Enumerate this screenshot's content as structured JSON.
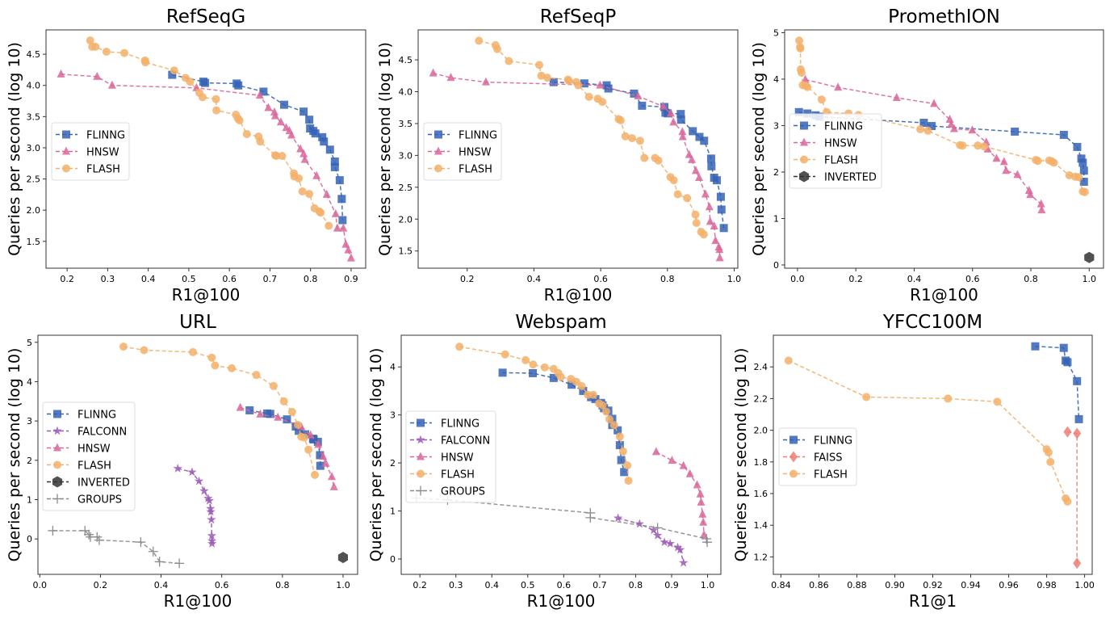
{
  "colors": {
    "FLINNG": "#3563b5",
    "HNSW": "#d9669a",
    "FLASH": "#f3b06a",
    "FALCONN": "#9b59b6",
    "INVERTED": "#333333",
    "GROUPS": "#8c8c8c",
    "FAISS": "#ee7d74"
  },
  "markers": {
    "FLINNG": "square",
    "HNSW": "triangle",
    "FLASH": "circle",
    "FALCONN": "star",
    "INVERTED": "hexagon",
    "GROUPS": "plus",
    "FAISS": "diamond"
  },
  "chart_data": [
    {
      "type": "line",
      "title": "RefSeqG",
      "xlabel": "R1@100",
      "ylabel": "Queries per second (log 10)",
      "xlim": [
        0.148,
        0.936
      ],
      "ylim": [
        1.07,
        4.89
      ],
      "xticks": [
        "0.2",
        "0.3",
        "0.4",
        "0.5",
        "0.6",
        "0.7",
        "0.8",
        "0.9"
      ],
      "yticks": [
        "1.5",
        "2.0",
        "2.5",
        "3.0",
        "3.5",
        "4.0",
        "4.5"
      ],
      "grid": false,
      "legend": "center-left",
      "series": [
        {
          "name": "FLINNG",
          "x": [
            0.459,
            0.536,
            0.54,
            0.618,
            0.622,
            0.684,
            0.735,
            0.783,
            0.797,
            0.799,
            0.807,
            0.812,
            0.829,
            0.833,
            0.848,
            0.86,
            0.86,
            0.872,
            0.877,
            0.879
          ],
          "y": [
            4.17,
            4.06,
            4.04,
            4.03,
            4.0,
            3.9,
            3.69,
            3.58,
            3.45,
            3.31,
            3.27,
            3.23,
            3.17,
            3.1,
            2.97,
            2.78,
            2.69,
            2.48,
            2.18,
            1.84
          ]
        },
        {
          "name": "HNSW",
          "x": [
            0.185,
            0.274,
            0.311,
            0.519,
            0.675,
            0.696,
            0.711,
            0.713,
            0.727,
            0.74,
            0.748,
            0.753,
            0.775,
            0.783,
            0.786,
            0.815,
            0.84,
            0.862,
            0.866,
            0.881,
            0.887,
            0.893,
            0.9
          ],
          "y": [
            4.18,
            4.14,
            4.0,
            3.96,
            3.84,
            3.64,
            3.57,
            3.51,
            3.41,
            3.32,
            3.27,
            3.2,
            2.98,
            2.9,
            2.81,
            2.55,
            2.25,
            1.94,
            1.71,
            1.71,
            1.45,
            1.36,
            1.23
          ]
        },
        {
          "name": "FLASH",
          "x": [
            0.257,
            0.262,
            0.27,
            0.297,
            0.341,
            0.392,
            0.393,
            0.464,
            0.492,
            0.503,
            0.526,
            0.534,
            0.567,
            0.568,
            0.616,
            0.621,
            0.625,
            0.643,
            0.672,
            0.676,
            0.713,
            0.716,
            0.73,
            0.759,
            0.76,
            0.771,
            0.78,
            0.797,
            0.81,
            0.822,
            0.825,
            0.845
          ],
          "y": [
            4.72,
            4.62,
            4.62,
            4.54,
            4.52,
            4.4,
            4.37,
            4.24,
            4.12,
            4.06,
            3.88,
            3.81,
            3.78,
            3.6,
            3.53,
            3.47,
            3.44,
            3.22,
            3.18,
            3.1,
            2.88,
            2.87,
            2.87,
            2.59,
            2.54,
            2.51,
            2.3,
            2.26,
            2.03,
            1.98,
            1.96,
            1.75
          ]
        }
      ]
    },
    {
      "type": "line",
      "title": "RefSeqP",
      "xlabel": "R1@100",
      "ylabel": "Queries per second (log 10)",
      "xlim": [
        0.053,
        1.011
      ],
      "ylim": [
        1.23,
        4.97
      ],
      "xticks": [
        "0.2",
        "0.4",
        "0.6",
        "0.8",
        "1.0"
      ],
      "yticks": [
        "1.5",
        "2.0",
        "2.5",
        "3.0",
        "3.5",
        "4.0",
        "4.5"
      ],
      "grid": false,
      "legend": "center-left",
      "series": [
        {
          "name": "FLINNG",
          "x": [
            0.459,
            0.551,
            0.618,
            0.623,
            0.7,
            0.724,
            0.791,
            0.794,
            0.801,
            0.84,
            0.841,
            0.876,
            0.896,
            0.91,
            0.931,
            0.932,
            0.94,
            0.948,
            0.96,
            0.962,
            0.969
          ],
          "y": [
            4.15,
            4.13,
            4.1,
            4.05,
            3.97,
            3.78,
            3.76,
            3.67,
            3.66,
            3.65,
            3.56,
            3.38,
            3.29,
            3.23,
            2.95,
            2.83,
            2.65,
            2.61,
            2.35,
            2.15,
            1.86
          ]
        },
        {
          "name": "HNSW",
          "x": [
            0.098,
            0.151,
            0.256,
            0.598,
            0.712,
            0.787,
            0.81,
            0.818,
            0.845,
            0.846,
            0.865,
            0.873,
            0.885,
            0.895,
            0.914,
            0.926,
            0.928,
            0.94,
            0.944,
            0.954,
            0.956,
            0.957
          ],
          "y": [
            4.29,
            4.22,
            4.15,
            4.1,
            3.93,
            3.77,
            3.66,
            3.52,
            3.37,
            3.29,
            3.01,
            2.93,
            2.76,
            2.65,
            2.39,
            2.19,
            1.96,
            1.89,
            1.66,
            1.56,
            1.52,
            1.39
          ]
        },
        {
          "name": "FLASH",
          "x": [
            0.235,
            0.285,
            0.29,
            0.325,
            0.416,
            0.422,
            0.44,
            0.502,
            0.505,
            0.527,
            0.533,
            0.565,
            0.591,
            0.605,
            0.654,
            0.66,
            0.674,
            0.694,
            0.718,
            0.731,
            0.763,
            0.773,
            0.809,
            0.819,
            0.831,
            0.859,
            0.884,
            0.887,
            0.901,
            0.909
          ],
          "y": [
            4.8,
            4.73,
            4.67,
            4.48,
            4.42,
            4.25,
            4.22,
            4.19,
            4.17,
            4.15,
            4.1,
            3.92,
            3.89,
            3.84,
            3.57,
            3.55,
            3.3,
            3.27,
            3.23,
            2.96,
            2.96,
            2.92,
            2.66,
            2.61,
            2.39,
            2.33,
            2.07,
            1.94,
            1.8,
            1.76
          ]
        }
      ]
    },
    {
      "type": "line",
      "title": "PromethION",
      "xlabel": "R1@100",
      "ylabel": "Queries per second (log 10)",
      "xlim": [
        -0.044,
        1.049
      ],
      "ylim": [
        -0.07,
        5.06
      ],
      "xticks": [
        "0.0",
        "0.2",
        "0.4",
        "0.6",
        "0.8",
        "1.0"
      ],
      "yticks": [
        "0",
        "1",
        "2",
        "3",
        "4",
        "5"
      ],
      "grid": false,
      "legend": "center-left",
      "series": [
        {
          "name": "FLINNG",
          "x": [
            0.005,
            0.034,
            0.062,
            0.076,
            0.433,
            0.46,
            0.745,
            0.913,
            0.959,
            0.973,
            0.978,
            0.982,
            0.982
          ],
          "y": [
            3.29,
            3.26,
            3.22,
            3.19,
            3.06,
            2.99,
            2.87,
            2.8,
            2.54,
            2.29,
            2.2,
            2.03,
            1.79
          ]
        },
        {
          "name": "HNSW",
          "x": [
            0.027,
            0.139,
            0.34,
            0.468,
            0.522,
            0.527,
            0.537,
            0.599,
            0.647,
            0.652,
            0.682,
            0.708,
            0.715,
            0.754,
            0.794,
            0.798,
            0.835,
            0.837
          ],
          "y": [
            3.99,
            3.82,
            3.6,
            3.47,
            3.13,
            3.02,
            2.93,
            2.9,
            2.64,
            2.49,
            2.29,
            2.22,
            2.03,
            1.94,
            1.6,
            1.51,
            1.31,
            1.18
          ]
        },
        {
          "name": "FLASH",
          "x": [
            0.006,
            0.009,
            0.01,
            0.011,
            0.014,
            0.018,
            0.028,
            0.034,
            0.083,
            0.1,
            0.175,
            0.209,
            0.421,
            0.447,
            0.557,
            0.566,
            0.618,
            0.64,
            0.817,
            0.824,
            0.863,
            0.872,
            0.879,
            0.932,
            0.952,
            0.964,
            0.978,
            0.985
          ],
          "y": [
            4.83,
            4.69,
            4.66,
            4.21,
            4.14,
            3.87,
            3.86,
            3.83,
            3.56,
            3.29,
            3.26,
            3.23,
            2.92,
            2.89,
            2.58,
            2.57,
            2.57,
            2.55,
            2.26,
            2.24,
            2.25,
            2.23,
            2.2,
            1.93,
            1.9,
            1.89,
            1.58,
            1.57
          ]
        },
        {
          "name": "INVERTED",
          "x": [
            1.0
          ],
          "y": [
            0.16
          ]
        }
      ]
    },
    {
      "type": "line",
      "title": "URL",
      "xlabel": "R1@100",
      "ylabel": "Queries per second (log 10)",
      "xlim": [
        -0.006,
        1.048
      ],
      "ylim": [
        -0.9,
        5.18
      ],
      "xticks": [
        "0.0",
        "0.2",
        "0.4",
        "0.6",
        "0.8",
        "1.0"
      ],
      "yticks": [
        "0",
        "1",
        "2",
        "3",
        "4",
        "5"
      ],
      "grid": false,
      "legend": "center-left",
      "series": [
        {
          "name": "FLINNG",
          "x": [
            0.692,
            0.75,
            0.76,
            0.815,
            0.844,
            0.854,
            0.875,
            0.901,
            0.903,
            0.917,
            0.924,
            0.925
          ],
          "y": [
            3.27,
            3.19,
            3.18,
            3.04,
            2.86,
            2.75,
            2.66,
            2.55,
            2.53,
            2.47,
            2.13,
            1.86
          ]
        },
        {
          "name": "FALCONN",
          "x": [
            0.455,
            0.502,
            0.525,
            0.542,
            0.555,
            0.559,
            0.563,
            0.564,
            0.566,
            0.567,
            0.568,
            0.568
          ],
          "y": [
            1.79,
            1.7,
            1.47,
            1.22,
            1.03,
            0.97,
            0.77,
            0.69,
            0.49,
            0.08,
            -0.05,
            -0.12
          ]
        },
        {
          "name": "HNSW",
          "x": [
            0.661,
            0.727,
            0.785,
            0.862,
            0.893,
            0.918,
            0.934,
            0.943,
            0.963,
            0.97
          ],
          "y": [
            3.34,
            3.17,
            3.09,
            2.85,
            2.64,
            2.4,
            2.1,
            1.92,
            1.58,
            1.32
          ]
        },
        {
          "name": "FLASH",
          "x": [
            0.276,
            0.344,
            0.505,
            0.567,
            0.578,
            0.633,
            0.714,
            0.771,
            0.805,
            0.832,
            0.851,
            0.862,
            0.872,
            0.886,
            0.907
          ],
          "y": [
            4.89,
            4.8,
            4.75,
            4.61,
            4.41,
            4.34,
            4.17,
            3.89,
            3.5,
            3.23,
            2.9,
            2.6,
            2.58,
            2.27,
            1.63
          ]
        },
        {
          "name": "INVERTED",
          "x": [
            1.0
          ],
          "y": [
            -0.47
          ]
        },
        {
          "name": "GROUPS",
          "x": [
            0.043,
            0.149,
            0.162,
            0.167,
            0.189,
            0.196,
            0.333,
            0.374,
            0.395,
            0.46
          ],
          "y": [
            0.21,
            0.21,
            0.11,
            0.05,
            0.05,
            -0.03,
            -0.08,
            -0.32,
            -0.58,
            -0.62
          ]
        }
      ]
    },
    {
      "type": "line",
      "title": "Webspam",
      "xlabel": "R1@100",
      "ylabel": "Queries per second (log 10)",
      "xlim": [
        0.148,
        1.037
      ],
      "ylim": [
        -0.32,
        4.66
      ],
      "xticks": [
        "0.2",
        "0.3",
        "0.4",
        "0.5",
        "0.6",
        "0.7",
        "0.8",
        "0.9",
        "1.0"
      ],
      "yticks": [
        "0",
        "1",
        "2",
        "3",
        "4"
      ],
      "grid": false,
      "legend": "center-left",
      "series": [
        {
          "name": "FLINNG",
          "x": [
            0.43,
            0.514,
            0.572,
            0.622,
            0.654,
            0.676,
            0.688,
            0.704,
            0.708,
            0.712,
            0.724,
            0.735,
            0.735,
            0.75,
            0.756,
            0.76,
            0.768
          ],
          "y": [
            3.88,
            3.87,
            3.77,
            3.63,
            3.5,
            3.37,
            3.33,
            3.25,
            3.2,
            3.14,
            3.09,
            2.92,
            2.79,
            2.68,
            2.37,
            2.06,
            1.81
          ]
        },
        {
          "name": "FALCONN",
          "x": [
            0.751,
            0.811,
            0.85,
            0.861,
            0.88,
            0.896,
            0.917,
            0.924,
            0.933
          ],
          "y": [
            0.85,
            0.73,
            0.6,
            0.49,
            0.35,
            0.32,
            0.24,
            0.19,
            -0.08
          ]
        },
        {
          "name": "HNSW",
          "x": [
            0.857,
            0.901,
            0.933,
            0.951,
            0.971,
            0.98,
            0.982,
            0.986,
            0.988,
            0.99
          ],
          "y": [
            2.23,
            2.05,
            1.94,
            1.77,
            1.54,
            1.35,
            1.18,
            0.93,
            0.76,
            0.5
          ]
        },
        {
          "name": "FLASH",
          "x": [
            0.31,
            0.437,
            0.494,
            0.515,
            0.547,
            0.572,
            0.585,
            0.592,
            0.62,
            0.635,
            0.65,
            0.667,
            0.682,
            0.698,
            0.708,
            0.718,
            0.727,
            0.74,
            0.756,
            0.765,
            0.777,
            0.78
          ],
          "y": [
            4.42,
            4.26,
            4.14,
            4.05,
            3.99,
            3.96,
            3.87,
            3.79,
            3.75,
            3.69,
            3.6,
            3.42,
            3.42,
            3.24,
            3.2,
            3.07,
            2.91,
            2.79,
            2.55,
            2.24,
            1.95,
            1.63
          ]
        },
        {
          "name": "GROUPS",
          "x": [
            0.19,
            0.277,
            0.674,
            0.674,
            0.861,
            0.997,
            0.999
          ],
          "y": [
            1.27,
            1.23,
            0.96,
            0.86,
            0.65,
            0.42,
            0.35
          ]
        }
      ]
    },
    {
      "type": "line",
      "title": "YFCC100M",
      "xlabel": "R1@1",
      "ylabel": "Queries per second (log 10)",
      "xlim": [
        0.836,
        1.004
      ],
      "ylim": [
        1.09,
        2.6
      ],
      "xticks": [
        "0.84",
        "0.86",
        "0.88",
        "0.90",
        "0.92",
        "0.94",
        "0.96",
        "0.98",
        "1.00"
      ],
      "yticks": [
        "1.2",
        "1.4",
        "1.6",
        "1.8",
        "2.0",
        "2.2",
        "2.4"
      ],
      "grid": false,
      "legend": "center-left",
      "series": [
        {
          "name": "FLINNG",
          "x": [
            0.974,
            0.989,
            0.99,
            0.991,
            0.996,
            0.997
          ],
          "y": [
            2.53,
            2.52,
            2.44,
            2.43,
            2.31,
            2.07
          ]
        },
        {
          "name": "FAISS",
          "x": [
            0.991,
            0.996,
            0.996
          ],
          "y": [
            1.99,
            1.98,
            1.16
          ]
        },
        {
          "name": "FLASH",
          "x": [
            0.844,
            0.885,
            0.928,
            0.954,
            0.98,
            0.981,
            0.982,
            0.99,
            0.991
          ],
          "y": [
            2.44,
            2.21,
            2.2,
            2.18,
            1.88,
            1.86,
            1.8,
            1.57,
            1.55
          ]
        }
      ]
    }
  ]
}
